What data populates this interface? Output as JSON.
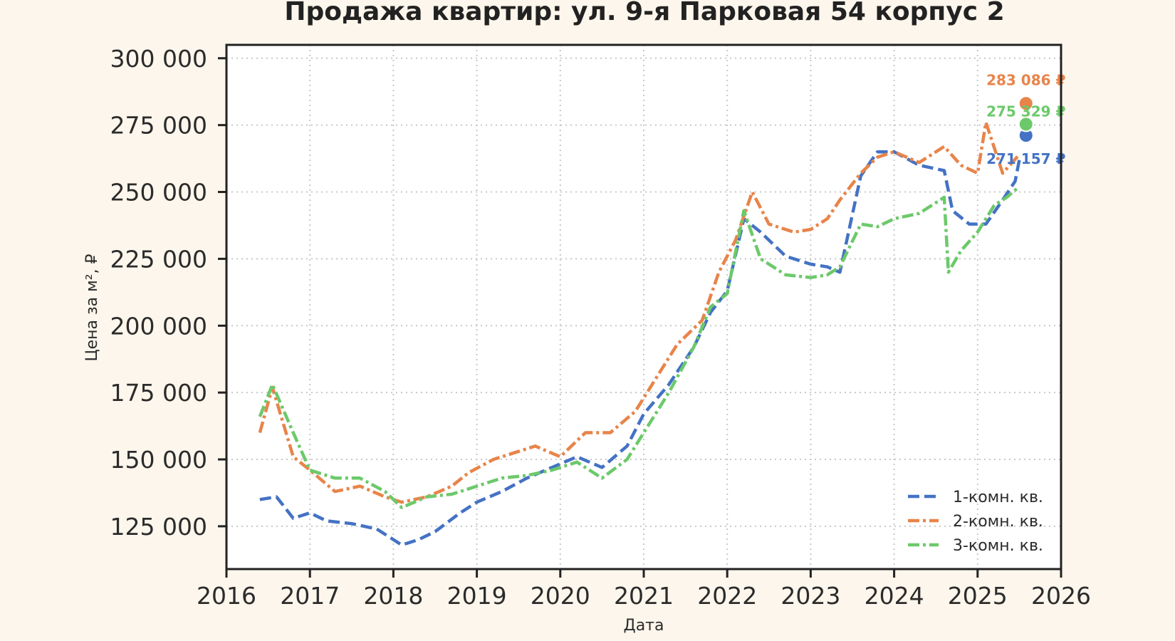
{
  "chart_data": {
    "type": "line",
    "title": "Продажа квартир: ул. 9-я Парковая 54 корпус 2",
    "xlabel": "Дата",
    "ylabel": "Цена за м², ₽",
    "xlim": [
      2016,
      2026
    ],
    "ylim": [
      109000,
      305000
    ],
    "x_ticks": [
      "2016",
      "2017",
      "2018",
      "2019",
      "2020",
      "2021",
      "2022",
      "2023",
      "2024",
      "2025",
      "2026"
    ],
    "y_ticks": [
      {
        "value": 125000,
        "label": "125 000"
      },
      {
        "value": 150000,
        "label": "150 000"
      },
      {
        "value": 175000,
        "label": "175 000"
      },
      {
        "value": 200000,
        "label": "200 000"
      },
      {
        "value": 225000,
        "label": "225 000"
      },
      {
        "value": 250000,
        "label": "250 000"
      },
      {
        "value": 275000,
        "label": "275 000"
      },
      {
        "value": 300000,
        "label": "300 000"
      }
    ],
    "grid": true,
    "legend_position": "bottom-right",
    "series": [
      {
        "name": "1-комн. кв.",
        "color": "#4472c4",
        "dash": "dashed",
        "x": [
          2016.4,
          2016.6,
          2016.8,
          2017.0,
          2017.2,
          2017.5,
          2017.8,
          2017.95,
          2018.1,
          2018.3,
          2018.5,
          2018.8,
          2019.0,
          2019.3,
          2019.6,
          2019.9,
          2020.2,
          2020.5,
          2020.8,
          2021.0,
          2021.3,
          2021.6,
          2021.8,
          2022.0,
          2022.2,
          2022.4,
          2022.7,
          2023.0,
          2023.2,
          2023.35,
          2023.6,
          2023.8,
          2024.0,
          2024.3,
          2024.6,
          2024.7,
          2024.9,
          2025.1,
          2025.3,
          2025.45,
          2025.5
        ],
        "y": [
          135000,
          136000,
          128000,
          130000,
          127000,
          126000,
          124000,
          121000,
          118000,
          120000,
          123000,
          130000,
          134000,
          138000,
          143000,
          147000,
          151000,
          147000,
          155000,
          167000,
          178000,
          192000,
          205000,
          213000,
          240000,
          235000,
          226000,
          223000,
          222000,
          220000,
          256000,
          265000,
          265000,
          260000,
          258000,
          243000,
          238000,
          238000,
          247000,
          254000,
          262000
        ]
      },
      {
        "name": "2-комн. кв.",
        "color": "#e8844a",
        "dash": "dashdot",
        "x": [
          2016.4,
          2016.55,
          2016.8,
          2017.0,
          2017.3,
          2017.6,
          2017.9,
          2018.1,
          2018.4,
          2018.7,
          2018.9,
          2019.2,
          2019.5,
          2019.7,
          2020.0,
          2020.3,
          2020.6,
          2020.9,
          2021.1,
          2021.4,
          2021.7,
          2021.9,
          2022.1,
          2022.3,
          2022.5,
          2022.8,
          2023.0,
          2023.2,
          2023.35,
          2023.6,
          2023.8,
          2024.0,
          2024.3,
          2024.6,
          2024.8,
          2025.0,
          2025.1,
          2025.3,
          2025.5
        ],
        "y": [
          160000,
          177000,
          151000,
          146000,
          138000,
          140000,
          136000,
          134000,
          136000,
          140000,
          145000,
          150000,
          153000,
          155000,
          151000,
          160000,
          160000,
          168000,
          178000,
          193000,
          202000,
          220000,
          232000,
          250000,
          238000,
          235000,
          236000,
          240000,
          247000,
          257000,
          263000,
          265000,
          261000,
          267000,
          260000,
          257000,
          276000,
          257000,
          264000
        ]
      },
      {
        "name": "3-комн. кв.",
        "color": "#6cc96a",
        "dash": "dashdot",
        "x": [
          2016.4,
          2016.55,
          2016.8,
          2017.0,
          2017.3,
          2017.6,
          2017.9,
          2018.1,
          2018.4,
          2018.7,
          2019.0,
          2019.3,
          2019.6,
          2019.9,
          2020.2,
          2020.5,
          2020.8,
          2021.0,
          2021.3,
          2021.6,
          2021.8,
          2022.0,
          2022.2,
          2022.4,
          2022.7,
          2023.0,
          2023.2,
          2023.35,
          2023.6,
          2023.8,
          2024.0,
          2024.3,
          2024.6,
          2024.65,
          2024.8,
          2025.0,
          2025.2,
          2025.35,
          2025.5
        ],
        "y": [
          166000,
          178000,
          160000,
          146000,
          143000,
          143000,
          138000,
          132000,
          136000,
          137000,
          140000,
          143000,
          144000,
          146000,
          149000,
          143000,
          150000,
          160000,
          175000,
          192000,
          207000,
          212000,
          243000,
          225000,
          219000,
          218000,
          219000,
          222000,
          238000,
          237000,
          240000,
          242000,
          248000,
          220000,
          228000,
          235000,
          245000,
          248000,
          252000
        ]
      }
    ],
    "end_points": [
      {
        "series": "1-комн. кв.",
        "x": 2025.58,
        "y": 271157,
        "label": "271 157 ₽",
        "color": "#4472c4"
      },
      {
        "series": "2-комн. кв.",
        "x": 2025.58,
        "y": 283086,
        "label": "283 086 ₽",
        "color": "#e8844a"
      },
      {
        "series": "3-комн. кв.",
        "x": 2025.58,
        "y": 275329,
        "label": "275 329 ₽",
        "color": "#6cc96a"
      }
    ]
  }
}
